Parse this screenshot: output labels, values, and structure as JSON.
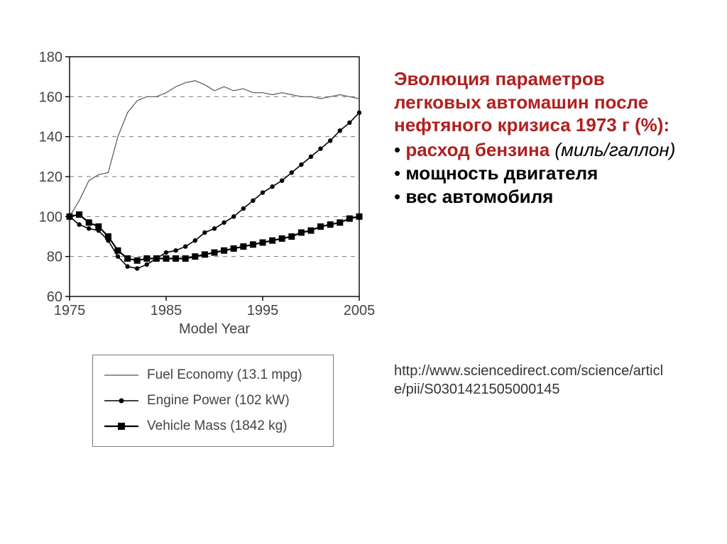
{
  "chart": {
    "type": "line",
    "xlim": [
      1975,
      2005
    ],
    "ylim": [
      60,
      180
    ],
    "xticks": [
      1975,
      1985,
      1995,
      2005
    ],
    "yticks": [
      60,
      80,
      100,
      120,
      140,
      160,
      180
    ],
    "xlabel": "Model Year",
    "axis_color": "#000000",
    "grid_color": "#777777",
    "grid_dash": "6,6",
    "background_color": "#ffffff",
    "tick_fontsize": 20,
    "label_fontsize": 20,
    "series": [
      {
        "name": "Fuel Economy (13.1 mpg)",
        "color": "#555555",
        "marker": "none",
        "line_width": 1.2,
        "points": [
          [
            1975,
            100
          ],
          [
            1976,
            108
          ],
          [
            1977,
            118
          ],
          [
            1978,
            121
          ],
          [
            1979,
            122
          ],
          [
            1980,
            140
          ],
          [
            1981,
            152
          ],
          [
            1982,
            158
          ],
          [
            1983,
            160
          ],
          [
            1984,
            160
          ],
          [
            1985,
            162
          ],
          [
            1986,
            165
          ],
          [
            1987,
            167
          ],
          [
            1988,
            168
          ],
          [
            1989,
            166
          ],
          [
            1990,
            163
          ],
          [
            1991,
            165
          ],
          [
            1992,
            163
          ],
          [
            1993,
            164
          ],
          [
            1994,
            162
          ],
          [
            1995,
            162
          ],
          [
            1996,
            161
          ],
          [
            1997,
            162
          ],
          [
            1998,
            161
          ],
          [
            1999,
            160
          ],
          [
            2000,
            160
          ],
          [
            2001,
            159
          ],
          [
            2002,
            160
          ],
          [
            2003,
            161
          ],
          [
            2004,
            160
          ],
          [
            2005,
            159
          ]
        ]
      },
      {
        "name": "Engine Power (102 kW)",
        "color": "#000000",
        "marker": "circle",
        "marker_size": 3.2,
        "line_width": 1.6,
        "points": [
          [
            1975,
            100
          ],
          [
            1976,
            96
          ],
          [
            1977,
            94
          ],
          [
            1978,
            93
          ],
          [
            1979,
            88
          ],
          [
            1980,
            80
          ],
          [
            1981,
            75
          ],
          [
            1982,
            74
          ],
          [
            1983,
            76
          ],
          [
            1984,
            79
          ],
          [
            1985,
            82
          ],
          [
            1986,
            83
          ],
          [
            1987,
            85
          ],
          [
            1988,
            88
          ],
          [
            1989,
            92
          ],
          [
            1990,
            94
          ],
          [
            1991,
            97
          ],
          [
            1992,
            100
          ],
          [
            1993,
            104
          ],
          [
            1994,
            108
          ],
          [
            1995,
            112
          ],
          [
            1996,
            115
          ],
          [
            1997,
            118
          ],
          [
            1998,
            122
          ],
          [
            1999,
            126
          ],
          [
            2000,
            130
          ],
          [
            2001,
            134
          ],
          [
            2002,
            138
          ],
          [
            2003,
            143
          ],
          [
            2004,
            147
          ],
          [
            2005,
            152
          ]
        ]
      },
      {
        "name": "Vehicle Mass (1842 kg)",
        "color": "#000000",
        "marker": "square",
        "marker_size": 4.5,
        "line_width": 2.2,
        "points": [
          [
            1975,
            100
          ],
          [
            1976,
            101
          ],
          [
            1977,
            97
          ],
          [
            1978,
            95
          ],
          [
            1979,
            90
          ],
          [
            1980,
            83
          ],
          [
            1981,
            79
          ],
          [
            1982,
            78
          ],
          [
            1983,
            79
          ],
          [
            1984,
            79
          ],
          [
            1985,
            79
          ],
          [
            1986,
            79
          ],
          [
            1987,
            79
          ],
          [
            1988,
            80
          ],
          [
            1989,
            81
          ],
          [
            1990,
            82
          ],
          [
            1991,
            83
          ],
          [
            1992,
            84
          ],
          [
            1993,
            85
          ],
          [
            1994,
            86
          ],
          [
            1995,
            87
          ],
          [
            1996,
            88
          ],
          [
            1997,
            89
          ],
          [
            1998,
            90
          ],
          [
            1999,
            92
          ],
          [
            2000,
            93
          ],
          [
            2001,
            95
          ],
          [
            2002,
            96
          ],
          [
            2003,
            97
          ],
          [
            2004,
            99
          ],
          [
            2005,
            100
          ]
        ]
      }
    ]
  },
  "legend": {
    "items": [
      {
        "label": "Fuel Economy (13.1 mpg)"
      },
      {
        "label": "Engine Power (102 kW)"
      },
      {
        "label": "Vehicle Mass (1842 kg)"
      }
    ]
  },
  "side": {
    "heading": "Эволюция параметров легковых автомашин после нефтяного кризиса 1973 г (%):",
    "bullets": [
      {
        "label": " расход бензина",
        "italic": "(миль/галлон)"
      },
      {
        "label": "мощность двигателя"
      },
      {
        "label": "вес автомобиля"
      }
    ]
  },
  "source": "http://www.sciencedirect.com/science/article/pii/S0301421505000145"
}
